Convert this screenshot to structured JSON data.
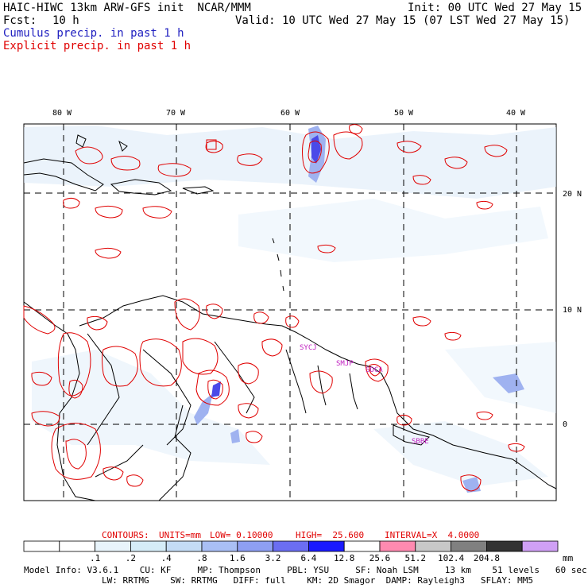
{
  "header": {
    "title": "HAIC-HIWC 13km ARW-GFS init  NCAR/MMM",
    "init": "Init: 00 UTC Wed 27 May 15",
    "fcst_label": "Fcst:",
    "fcst_value": "10 h",
    "valid": "Valid: 10 UTC Wed 27 May 15 (07 LST Wed 27 May 15)",
    "line_cumulus": "Cumulus precip. in past 1 h",
    "line_explicit": "Explicit precip. in past 1 h"
  },
  "map": {
    "lon_labels": [
      "80 W",
      "70 W",
      "60 W",
      "50 W",
      "40 W"
    ],
    "lat_labels": [
      "20 N",
      "10 N",
      "0"
    ],
    "stations": [
      "SMJP",
      "SOCA",
      "SBBE",
      "SYCJ"
    ]
  },
  "contours_line": {
    "label": "CONTOURS:",
    "units": "UNITS=mm",
    "low": "LOW= 0.10000",
    "high": "HIGH=  25.600",
    "interval": "INTERVAL=X  4.0000"
  },
  "colorbar": {
    "values": [
      ".1",
      ".2",
      ".4",
      ".8",
      "1.6",
      "3.2",
      "6.4",
      "12.8",
      "25.6",
      "51.2",
      "102.4",
      "204.8"
    ],
    "unit": "mm",
    "colors": [
      "#ffffff",
      "#ffffff",
      "#e8f4fb",
      "#d5ecf7",
      "#c4dcf5",
      "#a9bff5",
      "#8e9ff3",
      "#6b6ef2",
      "#1a1aff",
      "#ffffff",
      "#ff8ab0",
      "#c8c8c8",
      "#808080",
      "#333333",
      "#d0a0f5"
    ]
  },
  "model_info": {
    "line1": "Model Info: V3.6.1    CU: KF     MP: Thompson     PBL: YSU     SF: Noah LSM     13 km    51 levels   60 sec",
    "line2": "LW: RRTMG    SW: RRTMG   DIFF: full    KM: 2D Smagor  DAMP: Rayleigh3   SFLAY: MM5"
  }
}
